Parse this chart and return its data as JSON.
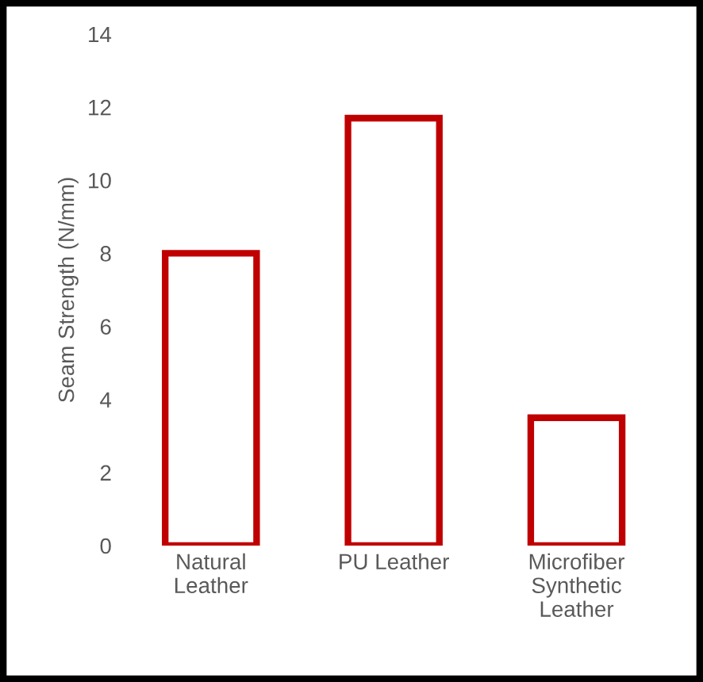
{
  "chart_data": {
    "type": "bar",
    "ylabel": "Seam Strength (N/mm)",
    "categories": [
      "Natural\nLeather",
      "PU Leather",
      "Microfiber\nSynthetic\nLeather"
    ],
    "values": [
      8.0,
      11.7,
      3.5
    ],
    "color": "#c00000",
    "ylim": [
      0,
      14
    ],
    "yticks": [
      0,
      2,
      4,
      6,
      8,
      10,
      12,
      14
    ],
    "grid": false
  }
}
